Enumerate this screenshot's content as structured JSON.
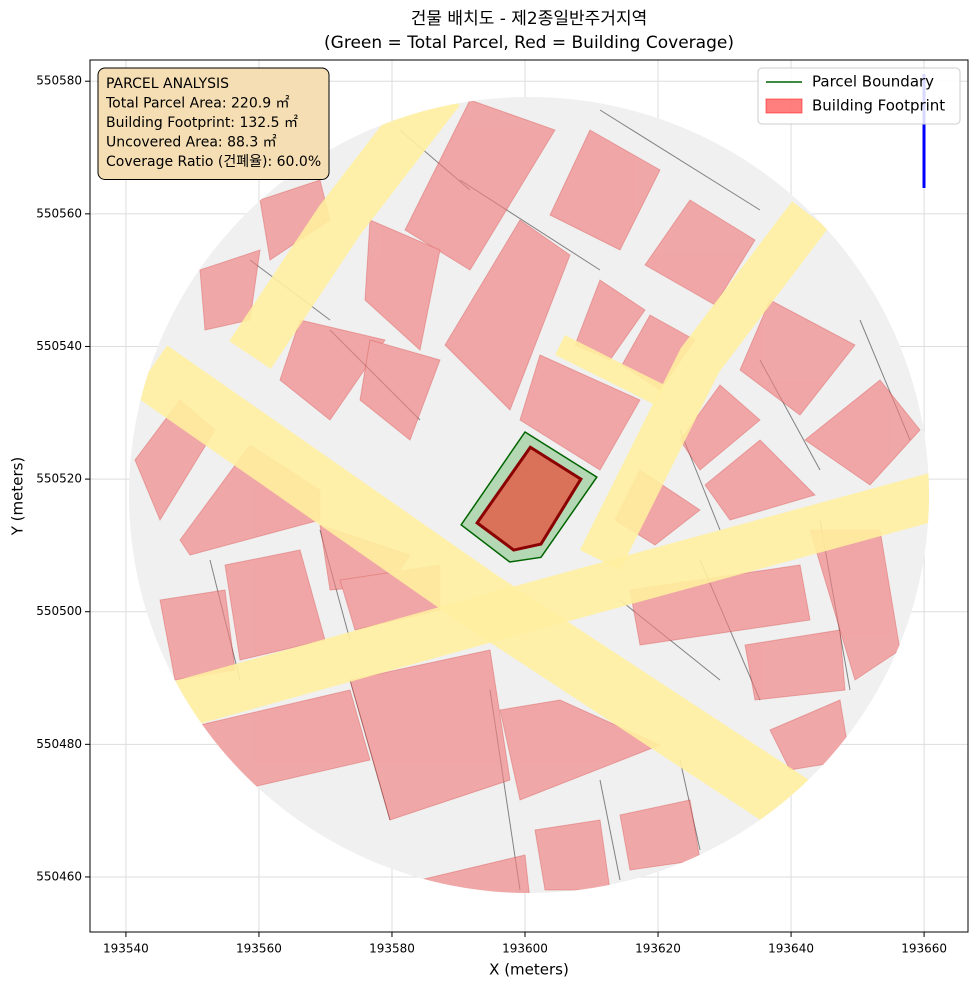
{
  "chart_data": {
    "type": "map",
    "title": "건물 배치도 - 제2종일반주거지역",
    "subtitle": "(Green = Total Parcel, Red = Building Coverage)",
    "x_label": "X (meters)",
    "y_label": "Y (meters)",
    "xlim": [
      193534.6,
      193666.6
    ],
    "ylim": [
      550451.7,
      550583.2
    ],
    "xticks": [
      193540,
      193560,
      193580,
      193600,
      193620,
      193640,
      193660
    ],
    "yticks": [
      550460,
      550480,
      550500,
      550520,
      550540,
      550560,
      550580
    ],
    "grid": true,
    "legend_loc": "upper right",
    "series": [
      {
        "name": "Parcel Boundary",
        "color": "#2ca02c",
        "edge": "#006400",
        "x": [
          193600.0,
          193610.8,
          193602.4,
          193597.7,
          193590.4
        ],
        "y": [
          550527.1,
          550520.3,
          550508.2,
          550507.5,
          550513.1
        ]
      },
      {
        "name": "Building Footprint",
        "color": "#e0604a",
        "edge": "#8b0000",
        "x": [
          193600.8,
          193608.4,
          193602.4,
          193598.3,
          193592.8
        ],
        "y": [
          550524.8,
          550520.0,
          550510.2,
          550509.3,
          550513.4
        ]
      }
    ],
    "annotation": [
      "PARCEL ANALYSIS",
      "Total Parcel Area: 220.9 ㎡",
      "Building Footprint: 132.5 ㎡",
      "Uncovered Area: 88.3 ㎡",
      "Coverage Ratio (건폐율): 60.0%"
    ]
  }
}
